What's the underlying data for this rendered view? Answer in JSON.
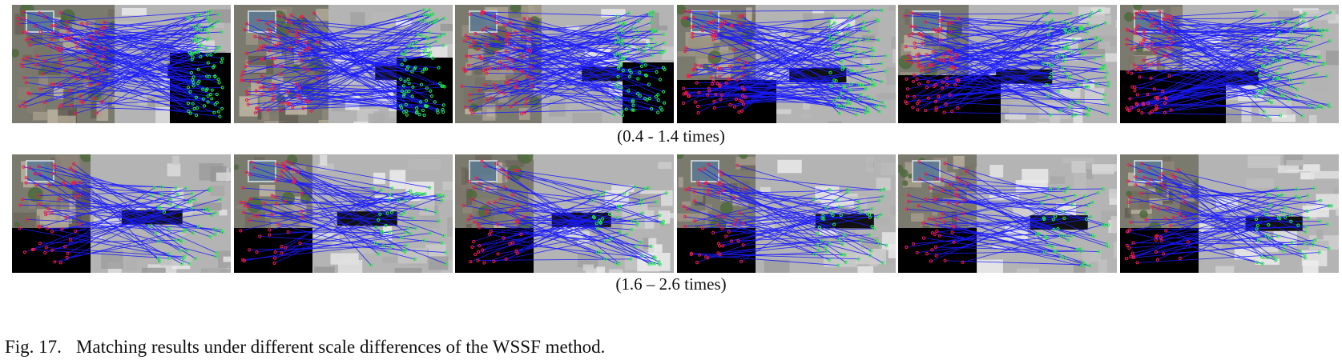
{
  "figure": {
    "label": "Fig. 17.",
    "caption": "Matching results under different scale differences of the WSSF method."
  },
  "rows": [
    {
      "caption": "(0.4 - 1.4 times)",
      "panel_count": 6
    },
    {
      "caption": "(1.6 – 2.6 times)",
      "panel_count": 6
    }
  ],
  "colors": {
    "match_line": "#1a1aff",
    "left_keypoint": "#ff1a3a",
    "right_keypoint": "#22ee44",
    "mask": "#000000"
  }
}
